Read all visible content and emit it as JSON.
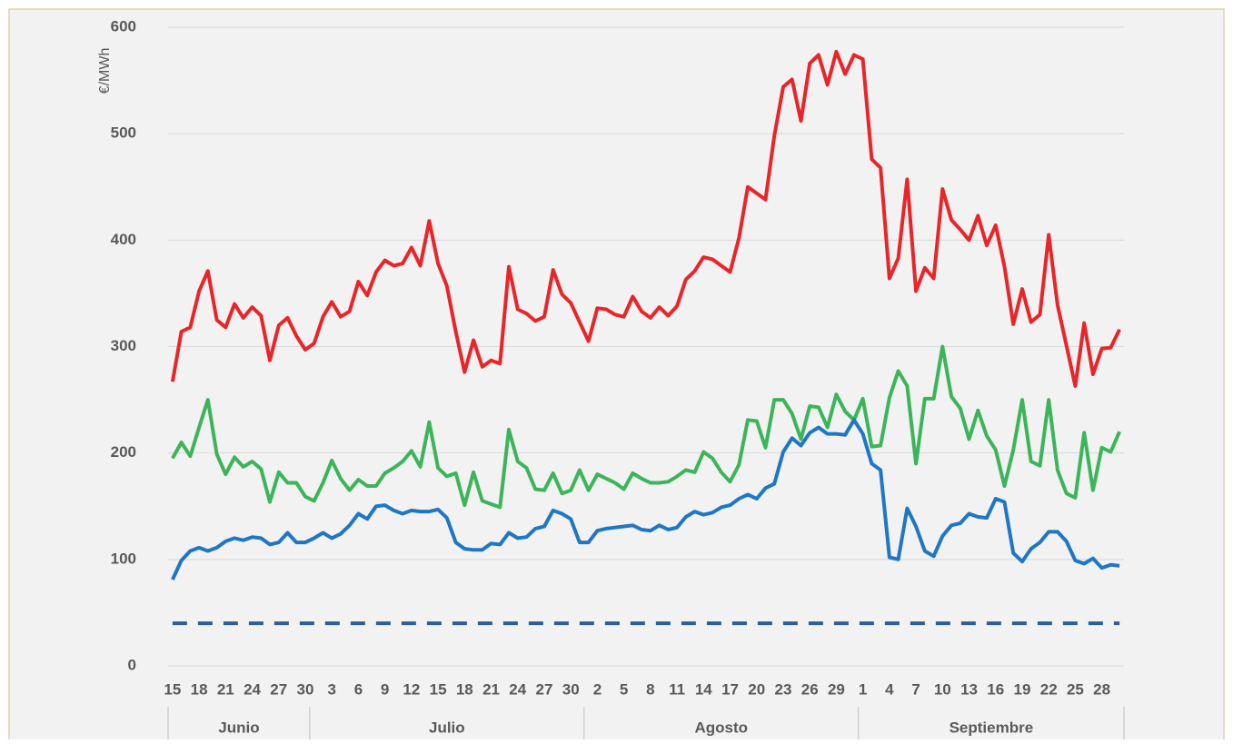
{
  "chart_data": {
    "type": "line",
    "y_label": "€/MWh",
    "categories": [
      "15",
      null,
      null,
      "18",
      null,
      null,
      "21",
      null,
      null,
      "24",
      null,
      null,
      "27",
      null,
      null,
      "30",
      null,
      null,
      "3",
      null,
      null,
      "6",
      null,
      null,
      "9",
      null,
      null,
      "12",
      null,
      null,
      "15",
      null,
      null,
      "18",
      null,
      null,
      "21",
      null,
      null,
      "24",
      null,
      null,
      "27",
      null,
      null,
      "30",
      null,
      null,
      "2",
      null,
      null,
      "5",
      null,
      null,
      "8",
      null,
      null,
      "11",
      null,
      null,
      "14",
      null,
      null,
      "17",
      null,
      null,
      "20",
      null,
      null,
      "23",
      null,
      null,
      "26",
      null,
      null,
      "29",
      null,
      null,
      "1",
      null,
      null,
      "4",
      null,
      null,
      "7",
      null,
      null,
      "10",
      null,
      null,
      "13",
      null,
      null,
      "16",
      null,
      null,
      "19",
      null,
      null,
      "22",
      null,
      null,
      "25",
      null,
      null,
      "28",
      null,
      null
    ],
    "months": [
      {
        "name": "Junio",
        "days": 16
      },
      {
        "name": "Julio",
        "days": 31
      },
      {
        "name": "Agosto",
        "days": 31
      },
      {
        "name": "Septiembre",
        "days": 30
      }
    ],
    "series": [
      {
        "color": "#e8262a",
        "values": [
          267,
          314,
          318,
          352,
          371,
          325,
          318,
          340,
          327,
          337,
          329,
          287,
          320,
          327,
          310,
          297,
          303,
          328,
          342,
          328,
          333,
          361,
          348,
          370,
          381,
          376,
          378,
          393,
          376,
          418,
          378,
          357,
          314,
          276,
          306,
          281,
          287,
          284,
          375,
          335,
          331,
          324,
          328,
          372,
          349,
          341,
          323,
          305,
          336,
          335,
          330,
          328,
          347,
          333,
          327,
          337,
          329,
          338,
          363,
          371,
          384,
          382,
          376,
          370,
          402,
          450,
          444,
          438,
          498,
          544,
          551,
          512,
          566,
          574,
          546,
          577,
          556,
          574,
          570,
          476,
          468,
          364,
          383,
          457,
          352,
          374,
          364,
          448,
          419,
          410,
          400,
          423,
          395,
          414,
          375,
          321,
          354,
          323,
          330,
          405,
          339,
          301,
          263,
          322,
          274,
          298,
          299,
          316
        ]
      },
      {
        "color": "#3cb55a",
        "values": [
          195,
          210,
          197,
          224,
          250,
          199,
          180,
          196,
          187,
          192,
          185,
          154,
          182,
          172,
          172,
          159,
          155,
          172,
          193,
          176,
          165,
          175,
          169,
          169,
          181,
          186,
          192,
          202,
          187,
          229,
          186,
          178,
          181,
          151,
          182,
          155,
          152,
          149,
          222,
          192,
          186,
          166,
          165,
          181,
          162,
          165,
          184,
          165,
          180,
          176,
          172,
          166,
          181,
          176,
          172,
          172,
          173,
          178,
          184,
          182,
          201,
          195,
          182,
          173,
          189,
          231,
          230,
          205,
          250,
          250,
          237,
          213,
          244,
          243,
          224,
          255,
          239,
          231,
          251,
          206,
          207,
          252,
          277,
          263,
          190,
          251,
          251,
          300,
          253,
          242,
          213,
          240,
          216,
          203,
          169,
          203,
          250,
          192,
          188,
          250,
          184,
          162,
          158,
          219,
          165,
          205,
          201,
          220
        ]
      },
      {
        "color": "#1f77c4",
        "values": [
          81,
          99,
          108,
          111,
          108,
          111,
          117,
          120,
          118,
          121,
          120,
          114,
          116,
          125,
          116,
          116,
          120,
          125,
          120,
          124,
          132,
          143,
          138,
          150,
          151,
          146,
          143,
          146,
          145,
          145,
          147,
          139,
          116,
          110,
          109,
          109,
          115,
          114,
          125,
          120,
          121,
          129,
          131,
          146,
          143,
          138,
          116,
          116,
          127,
          129,
          130,
          131,
          132,
          128,
          127,
          132,
          128,
          130,
          140,
          145,
          142,
          144,
          149,
          151,
          157,
          161,
          157,
          167,
          171,
          201,
          214,
          207,
          219,
          224,
          218,
          218,
          217,
          231,
          218,
          190,
          184,
          102,
          100,
          148,
          131,
          108,
          103,
          122,
          132,
          134,
          143,
          140,
          139,
          157,
          154,
          106,
          98,
          110,
          116,
          126,
          126,
          117,
          99,
          96,
          101,
          92,
          95,
          94
        ]
      }
    ],
    "reference_line": {
      "value": 40,
      "color": "#2d5f95",
      "dashed": true
    },
    "ylim": [
      0,
      600
    ],
    "yticks": [
      0,
      100,
      200,
      300,
      400,
      500,
      600
    ],
    "grid": true
  }
}
